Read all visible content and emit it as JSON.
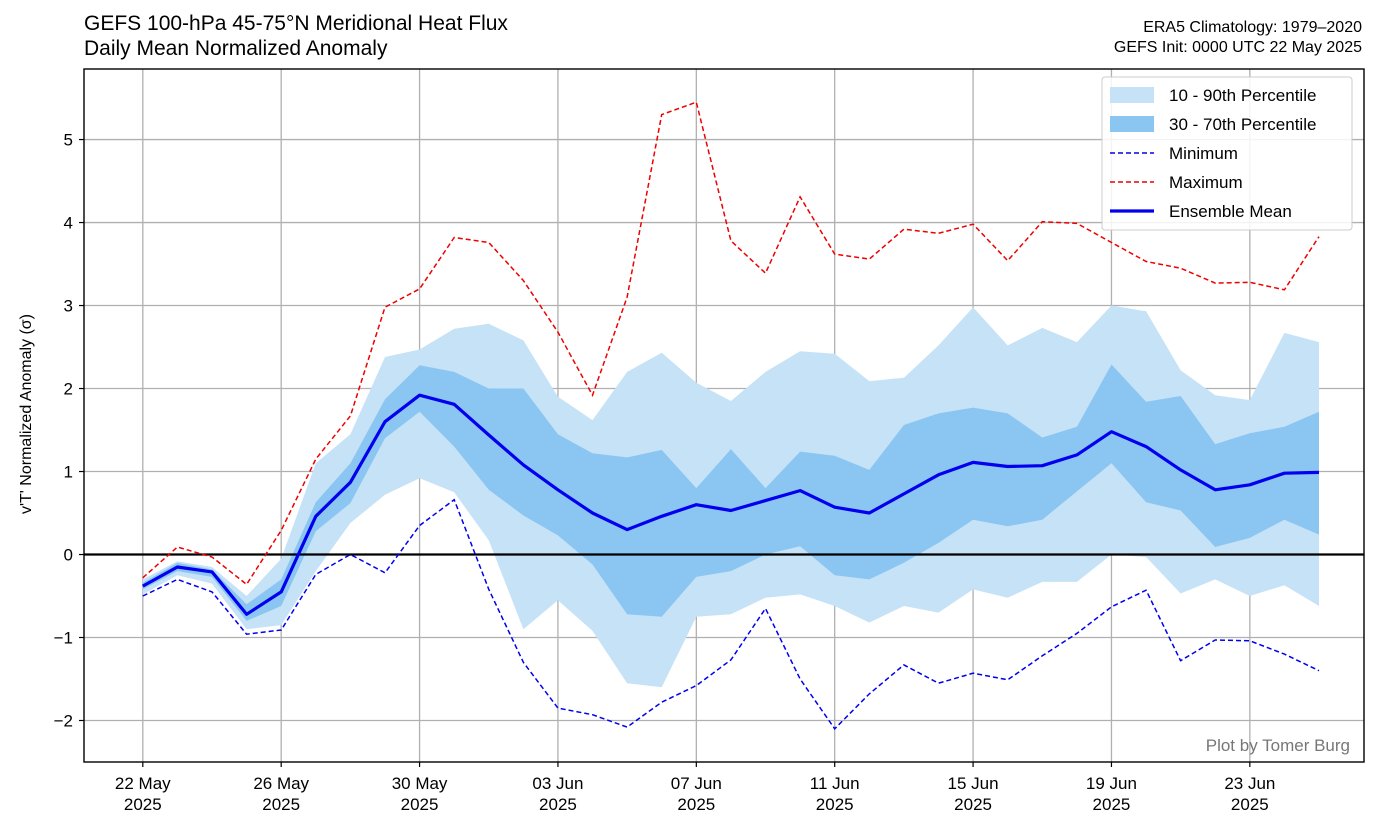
{
  "header": {
    "title": "GEFS 100-hPa 45-75°N Meridional Heat Flux",
    "subtitle": "Daily Mean Normalized Anomaly",
    "climatology": "ERA5 Climatology: 1979–2020",
    "init": "GEFS Init: 0000 UTC 22 May 2025"
  },
  "credit": "Plot by Tomer Burg",
  "colors": {
    "band_10_90": "#c6e2f7",
    "band_30_70": "#8bc6f2",
    "mean": "#0000ee",
    "minimum": "#0000ee",
    "maximum": "#ee0000",
    "grid": "#b0b0b0",
    "zero_line": "#000000"
  },
  "chart_data": {
    "type": "line",
    "ylabel": "v'T' Normalized Anomaly (σ)",
    "ylim": [
      -2.5,
      5.85
    ],
    "yticks": [
      -2,
      -1,
      0,
      1,
      2,
      3,
      4,
      5
    ],
    "ytick_labels": [
      "−2",
      "−1",
      "0",
      "1",
      "2",
      "3",
      "4",
      "5"
    ],
    "xticks": [
      {
        "day": 0,
        "label1": "22 May",
        "label2": "2025"
      },
      {
        "day": 4,
        "label1": "26 May",
        "label2": "2025"
      },
      {
        "day": 8,
        "label1": "30 May",
        "label2": "2025"
      },
      {
        "day": 12,
        "label1": "03 Jun",
        "label2": "2025"
      },
      {
        "day": 16,
        "label1": "07 Jun",
        "label2": "2025"
      },
      {
        "day": 20,
        "label1": "11 Jun",
        "label2": "2025"
      },
      {
        "day": 24,
        "label1": "15 Jun",
        "label2": "2025"
      },
      {
        "day": 28,
        "label1": "19 Jun",
        "label2": "2025"
      },
      {
        "day": 32,
        "label1": "23 Jun",
        "label2": "2025"
      }
    ],
    "xlim": [
      -1.7,
      35.3
    ],
    "x_dates": [
      "22 May",
      "23 May",
      "24 May",
      "25 May",
      "26 May",
      "27 May",
      "28 May",
      "29 May",
      "30 May",
      "31 May",
      "01 Jun",
      "02 Jun",
      "03 Jun",
      "04 Jun",
      "05 Jun",
      "06 Jun",
      "07 Jun",
      "08 Jun",
      "09 Jun",
      "10 Jun",
      "11 Jun",
      "12 Jun",
      "13 Jun",
      "14 Jun",
      "15 Jun",
      "16 Jun",
      "17 Jun",
      "18 Jun",
      "19 Jun",
      "20 Jun",
      "21 Jun",
      "22 Jun",
      "23 Jun",
      "24 Jun",
      "25 Jun"
    ],
    "legend_placement": "top-right",
    "legend": [
      "10 - 90th Percentile",
      "30 - 70th Percentile",
      "Minimum",
      "Maximum",
      "Ensemble Mean"
    ],
    "series": [
      {
        "name": "Ensemble Mean",
        "kind": "line",
        "values": [
          -0.38,
          -0.15,
          -0.21,
          -0.72,
          -0.45,
          0.46,
          0.87,
          1.6,
          1.92,
          1.81,
          1.44,
          1.08,
          0.78,
          0.5,
          0.3,
          0.46,
          0.6,
          0.53,
          0.65,
          0.77,
          0.57,
          0.5,
          0.73,
          0.96,
          1.11,
          1.06,
          1.07,
          1.2,
          1.48,
          1.3,
          1.02,
          0.78,
          0.84,
          0.98,
          0.99
        ]
      },
      {
        "name": "Minimum",
        "kind": "dashed",
        "values": [
          -0.5,
          -0.3,
          -0.45,
          -0.96,
          -0.91,
          -0.24,
          0.0,
          -0.22,
          0.35,
          0.66,
          -0.42,
          -1.3,
          -1.85,
          -1.93,
          -2.08,
          -1.78,
          -1.58,
          -1.27,
          -0.65,
          -1.5,
          -2.1,
          -1.68,
          -1.33,
          -1.55,
          -1.43,
          -1.51,
          -1.22,
          -0.95,
          -0.63,
          -0.43,
          -1.28,
          -1.03,
          -1.04,
          -1.2,
          -1.4
        ]
      },
      {
        "name": "Maximum",
        "kind": "dashed",
        "values": [
          -0.28,
          0.09,
          -0.03,
          -0.36,
          0.29,
          1.15,
          1.67,
          2.98,
          3.2,
          3.82,
          3.76,
          3.3,
          2.68,
          1.92,
          3.1,
          5.3,
          5.45,
          3.78,
          3.39,
          4.31,
          3.62,
          3.56,
          3.92,
          3.87,
          3.98,
          3.54,
          4.01,
          3.99,
          3.76,
          3.53,
          3.45,
          3.27,
          3.28,
          3.19,
          3.83
        ]
      },
      {
        "name": "10 - 90th Percentile",
        "kind": "band",
        "upper": [
          -0.3,
          -0.08,
          -0.15,
          -0.5,
          -0.05,
          1.1,
          1.45,
          2.38,
          2.47,
          2.72,
          2.78,
          2.58,
          1.9,
          1.62,
          2.2,
          2.43,
          2.07,
          1.85,
          2.2,
          2.45,
          2.42,
          2.09,
          2.13,
          2.52,
          2.98,
          2.52,
          2.73,
          2.56,
          3.0,
          2.93,
          2.22,
          1.92,
          1.86,
          2.67,
          2.56
        ],
        "lower": [
          -0.48,
          -0.25,
          -0.35,
          -0.9,
          -0.85,
          -0.2,
          0.38,
          0.72,
          0.92,
          0.75,
          0.17,
          -0.9,
          -0.55,
          -0.92,
          -1.55,
          -1.6,
          -0.75,
          -0.72,
          -0.52,
          -0.48,
          -0.62,
          -0.82,
          -0.62,
          -0.7,
          -0.42,
          -0.52,
          -0.33,
          -0.33,
          0.0,
          -0.03,
          -0.47,
          -0.3,
          -0.5,
          -0.37,
          -0.62
        ]
      },
      {
        "name": "30 - 70th Percentile",
        "kind": "band",
        "upper": [
          -0.34,
          -0.1,
          -0.18,
          -0.6,
          -0.3,
          0.63,
          1.1,
          1.87,
          2.28,
          2.2,
          2.0,
          2.0,
          1.45,
          1.22,
          1.17,
          1.26,
          0.8,
          1.27,
          0.8,
          1.24,
          1.19,
          1.02,
          1.56,
          1.7,
          1.77,
          1.7,
          1.41,
          1.54,
          2.29,
          1.84,
          1.91,
          1.33,
          1.46,
          1.54,
          1.72
        ],
        "lower": [
          -0.42,
          -0.2,
          -0.27,
          -0.8,
          -0.62,
          0.28,
          0.62,
          1.4,
          1.72,
          1.3,
          0.78,
          0.47,
          0.23,
          -0.12,
          -0.72,
          -0.75,
          -0.27,
          -0.2,
          0.0,
          0.1,
          -0.25,
          -0.3,
          -0.1,
          0.14,
          0.42,
          0.34,
          0.42,
          0.76,
          1.1,
          0.63,
          0.53,
          0.09,
          0.2,
          0.42,
          0.24
        ]
      }
    ]
  }
}
